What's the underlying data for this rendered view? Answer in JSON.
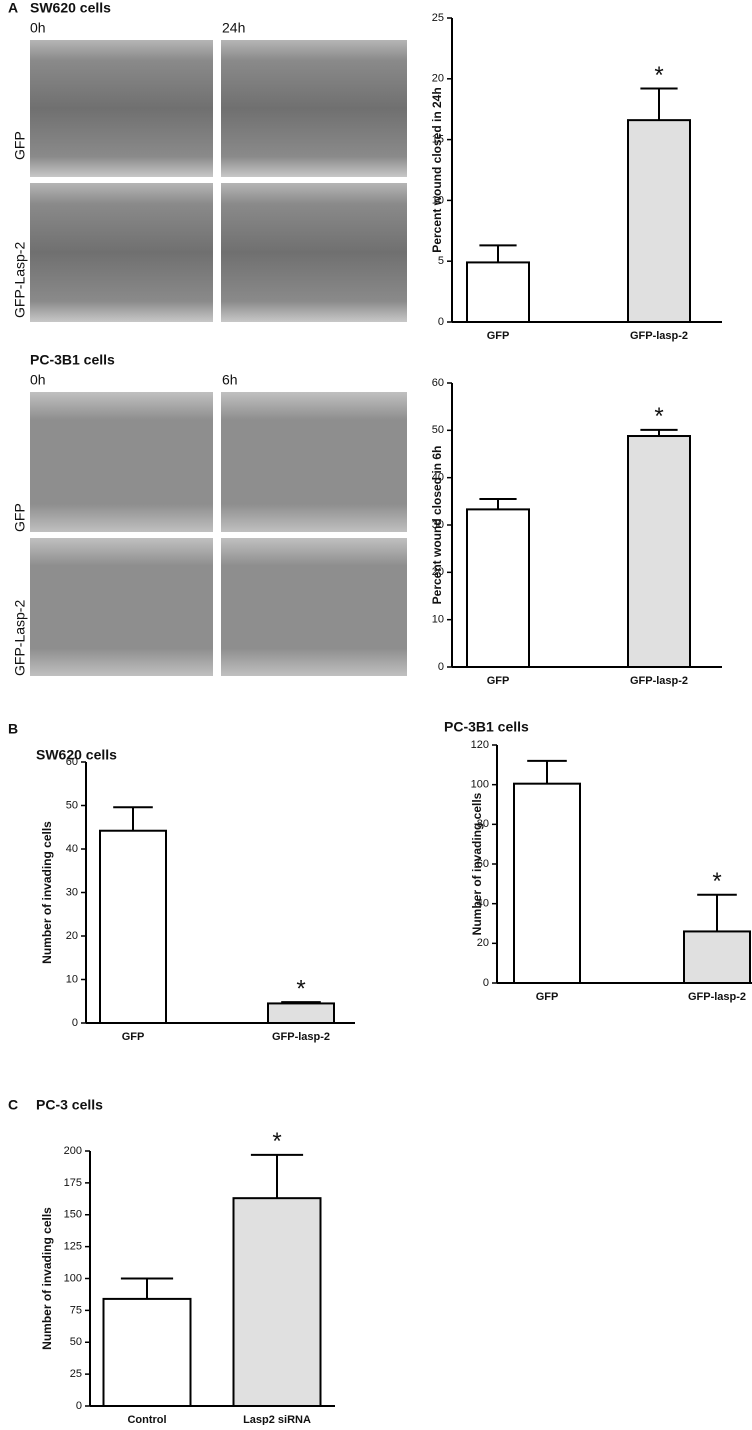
{
  "figure": {
    "panel_a": {
      "label": "A",
      "title": "SW620 cells",
      "times": [
        "0h",
        "24h"
      ],
      "rows": [
        "GFP",
        "GFP-Lasp-2"
      ]
    },
    "panel_a2": {
      "title": "PC-3B1 cells",
      "times": [
        "0h",
        "6h"
      ],
      "rows": [
        "GFP",
        "GFP-Lasp-2"
      ]
    },
    "panel_b": {
      "label": "B"
    },
    "panel_c": {
      "label": "C"
    }
  },
  "chart_data": [
    {
      "type": "bar",
      "ylabel": "Percent  wound closed in 24h",
      "categories": [
        "GFP",
        "GFP-lasp-2"
      ],
      "values": [
        4.9,
        16.6
      ],
      "errors": [
        1.4,
        2.6
      ],
      "colors": [
        "#ffffff",
        "#e0e0e0"
      ],
      "annotations": [
        null,
        "*"
      ],
      "ylim": [
        0,
        25
      ],
      "yticks": [
        0,
        5,
        10,
        15,
        20,
        25
      ]
    },
    {
      "type": "bar",
      "ylabel": "Percent wound closed in 6h",
      "categories": [
        "GFP",
        "GFP-lasp-2"
      ],
      "values": [
        33.3,
        48.8
      ],
      "errors": [
        2.2,
        1.3
      ],
      "colors": [
        "#ffffff",
        "#e0e0e0"
      ],
      "annotations": [
        null,
        "*"
      ],
      "ylim": [
        0,
        60
      ],
      "yticks": [
        0,
        10,
        20,
        30,
        40,
        50,
        60
      ]
    },
    {
      "type": "bar",
      "title": "SW620 cells",
      "ylabel": "Number of invading cells",
      "categories": [
        "GFP",
        "GFP-lasp-2"
      ],
      "values": [
        44.2,
        4.5
      ],
      "errors": [
        5.4,
        0.3
      ],
      "colors": [
        "#ffffff",
        "#e0e0e0"
      ],
      "annotations": [
        null,
        "*"
      ],
      "ylim": [
        0,
        60
      ],
      "yticks": [
        0,
        10,
        20,
        30,
        40,
        50,
        60
      ]
    },
    {
      "type": "bar",
      "title": "PC-3B1 cells",
      "ylabel": "Number of invading cells",
      "categories": [
        "GFP",
        "GFP-lasp-2"
      ],
      "values": [
        100.5,
        26
      ],
      "errors": [
        11.5,
        18.5
      ],
      "colors": [
        "#ffffff",
        "#e0e0e0"
      ],
      "annotations": [
        null,
        "*"
      ],
      "ylim": [
        0,
        120
      ],
      "yticks": [
        0,
        20,
        40,
        60,
        80,
        100,
        120
      ]
    },
    {
      "type": "bar",
      "title": "PC-3 cells",
      "ylabel": "Number of invading cells",
      "categories": [
        "Control",
        "Lasp2 siRNA"
      ],
      "values": [
        84,
        163
      ],
      "errors": [
        16,
        34
      ],
      "colors": [
        "#ffffff",
        "#e0e0e0"
      ],
      "annotations": [
        null,
        "*"
      ],
      "ylim": [
        0,
        200
      ],
      "yticks": [
        0,
        25,
        50,
        75,
        100,
        125,
        150,
        175,
        200
      ]
    }
  ]
}
